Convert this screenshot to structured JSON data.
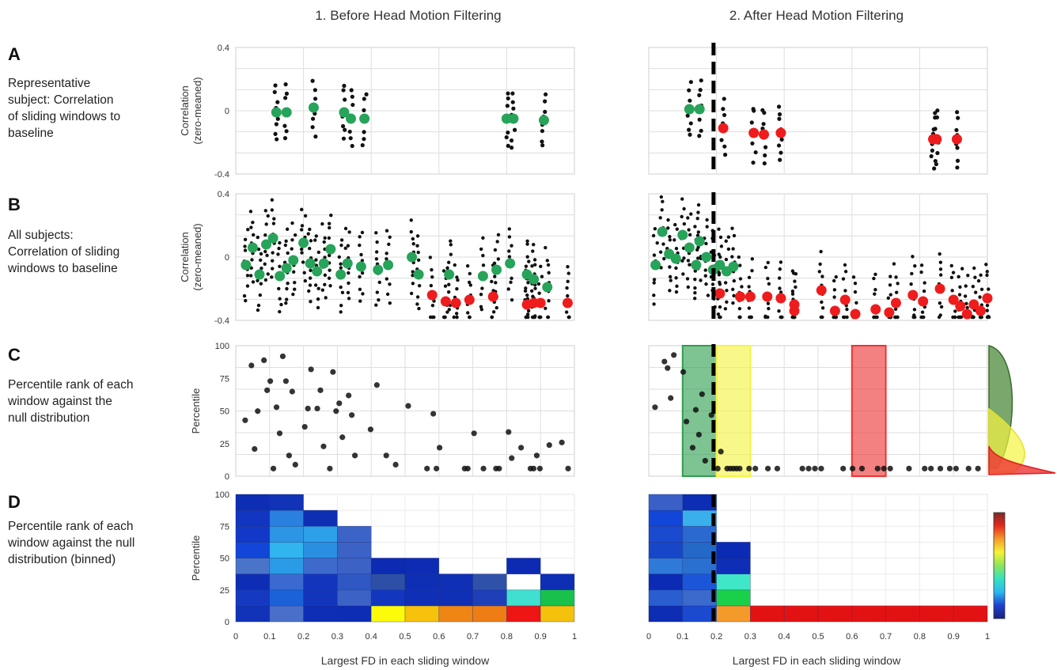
{
  "columns": {
    "before": "1. Before Head Motion Filtering",
    "after": "2. After Head Motion Filtering"
  },
  "rows": [
    {
      "letter": "A",
      "desc": [
        "Representative",
        "subject: Correlation",
        "of sliding windows to",
        "baseline"
      ]
    },
    {
      "letter": "B",
      "desc": [
        "All subjects:",
        "Correlation of sliding",
        "windows to baseline"
      ]
    },
    {
      "letter": "C",
      "desc": [
        "Percentile rank of each",
        "window against the",
        "null distribution"
      ]
    },
    {
      "letter": "D",
      "desc": [
        "Percentile rank of each",
        "window against the null",
        "distribution (binned)"
      ]
    }
  ],
  "xlabel": "Largest FD in each sliding window",
  "colors": {
    "kept_point": "#27a35a",
    "removed_point": "#ee1c1c",
    "raw_point": "#111111",
    "shade_green": "#2e9e4f",
    "shade_yellow": "#f4f442",
    "shade_red": "#ee3333"
  },
  "chart_data": [
    {
      "id": "A1",
      "type": "scatter",
      "panel": "A",
      "column": "before",
      "ylabel": "Correlation\n(zero-meaned)",
      "yticks": [
        "0.4",
        "0",
        "-0.4"
      ],
      "ylim": [
        -0.4,
        0.4
      ],
      "window_means": [
        [
          0.12,
          -0.01
        ],
        [
          0.15,
          -0.01
        ],
        [
          0.23,
          0.02
        ],
        [
          0.32,
          -0.01
        ],
        [
          0.34,
          -0.05
        ],
        [
          0.38,
          -0.05
        ],
        [
          0.8,
          -0.05
        ],
        [
          0.82,
          -0.05
        ],
        [
          0.91,
          -0.06
        ]
      ],
      "fd_threshold": null
    },
    {
      "id": "A2",
      "type": "scatter",
      "panel": "A",
      "column": "after",
      "yticks": [],
      "ylim": [
        -0.4,
        0.4
      ],
      "window_means": [
        [
          0.12,
          0.01
        ],
        [
          0.15,
          0.01
        ],
        [
          0.22,
          -0.11
        ],
        [
          0.31,
          -0.14
        ],
        [
          0.34,
          -0.15
        ],
        [
          0.39,
          -0.14
        ],
        [
          0.84,
          -0.18
        ],
        [
          0.85,
          -0.18
        ],
        [
          0.91,
          -0.18
        ]
      ],
      "fd_threshold": 0.21
    },
    {
      "id": "B1",
      "type": "scatter",
      "panel": "B",
      "column": "before",
      "ylabel": "Correlation\n(zero-meaned)",
      "yticks": [
        "0.4",
        "0",
        "-0.4"
      ],
      "ylim": [
        -0.4,
        0.4
      ],
      "kept_means": [
        [
          0.03,
          -0.05
        ],
        [
          0.05,
          0.06
        ],
        [
          0.07,
          -0.11
        ],
        [
          0.09,
          0.08
        ],
        [
          0.11,
          0.12
        ],
        [
          0.13,
          -0.12
        ],
        [
          0.15,
          -0.07
        ],
        [
          0.17,
          -0.02
        ],
        [
          0.2,
          0.09
        ],
        [
          0.22,
          -0.04
        ],
        [
          0.24,
          -0.09
        ],
        [
          0.26,
          -0.04
        ],
        [
          0.28,
          0.05
        ],
        [
          0.31,
          -0.11
        ],
        [
          0.33,
          -0.04
        ],
        [
          0.37,
          -0.06
        ],
        [
          0.42,
          -0.08
        ],
        [
          0.45,
          -0.05
        ],
        [
          0.52,
          0.0
        ],
        [
          0.54,
          -0.11
        ],
        [
          0.63,
          -0.11
        ],
        [
          0.73,
          -0.12
        ],
        [
          0.77,
          -0.08
        ],
        [
          0.81,
          -0.04
        ],
        [
          0.86,
          -0.11
        ],
        [
          0.88,
          -0.14
        ],
        [
          0.92,
          -0.19
        ]
      ],
      "removed_means": [
        [
          0.58,
          -0.24
        ],
        [
          0.62,
          -0.28
        ],
        [
          0.65,
          -0.29
        ],
        [
          0.69,
          -0.27
        ],
        [
          0.76,
          -0.25
        ],
        [
          0.86,
          -0.3
        ],
        [
          0.88,
          -0.29
        ],
        [
          0.9,
          -0.29
        ],
        [
          0.98,
          -0.29
        ]
      ],
      "fd_threshold": null
    },
    {
      "id": "B2",
      "type": "scatter",
      "panel": "B",
      "column": "after",
      "yticks": [],
      "ylim": [
        -0.4,
        0.4
      ],
      "kept_means": [
        [
          0.02,
          -0.05
        ],
        [
          0.04,
          0.16
        ],
        [
          0.06,
          0.02
        ],
        [
          0.08,
          -0.01
        ],
        [
          0.1,
          0.14
        ],
        [
          0.12,
          0.06
        ],
        [
          0.14,
          -0.05
        ],
        [
          0.15,
          0.1
        ],
        [
          0.17,
          0.0
        ],
        [
          0.19,
          -0.08
        ],
        [
          0.21,
          -0.05
        ],
        [
          0.23,
          -0.09
        ],
        [
          0.25,
          -0.06
        ]
      ],
      "removed_means": [
        [
          0.21,
          -0.23
        ],
        [
          0.27,
          -0.25
        ],
        [
          0.3,
          -0.25
        ],
        [
          0.35,
          -0.25
        ],
        [
          0.39,
          -0.26
        ],
        [
          0.43,
          -0.3
        ],
        [
          0.43,
          -0.34
        ],
        [
          0.51,
          -0.21
        ],
        [
          0.55,
          -0.34
        ],
        [
          0.58,
          -0.27
        ],
        [
          0.61,
          -0.36
        ],
        [
          0.67,
          -0.33
        ],
        [
          0.71,
          -0.35
        ],
        [
          0.73,
          -0.29
        ],
        [
          0.78,
          -0.24
        ],
        [
          0.81,
          -0.28
        ],
        [
          0.86,
          -0.2
        ],
        [
          0.9,
          -0.27
        ],
        [
          0.92,
          -0.31
        ],
        [
          0.94,
          -0.36
        ],
        [
          0.96,
          -0.3
        ],
        [
          0.98,
          -0.34
        ],
        [
          1.0,
          -0.26
        ]
      ],
      "fd_threshold": 0.21
    },
    {
      "id": "C1",
      "type": "scatter",
      "panel": "C",
      "column": "before",
      "ylabel": "Percentile",
      "yticks": [
        "100",
        "75",
        "50",
        "25",
        "0"
      ],
      "ylim": [
        0,
        100
      ],
      "points": [
        [
          0.03,
          38
        ],
        [
          0.05,
          80
        ],
        [
          0.06,
          16
        ],
        [
          0.07,
          45
        ],
        [
          0.09,
          84
        ],
        [
          0.1,
          61
        ],
        [
          0.11,
          68
        ],
        [
          0.12,
          1
        ],
        [
          0.13,
          48
        ],
        [
          0.14,
          28
        ],
        [
          0.15,
          87
        ],
        [
          0.16,
          68
        ],
        [
          0.17,
          11
        ],
        [
          0.18,
          60
        ],
        [
          0.19,
          4
        ],
        [
          0.22,
          33
        ],
        [
          0.23,
          47
        ],
        [
          0.24,
          77
        ],
        [
          0.26,
          47
        ],
        [
          0.27,
          61
        ],
        [
          0.28,
          18
        ],
        [
          0.3,
          1
        ],
        [
          0.31,
          75
        ],
        [
          0.32,
          45
        ],
        [
          0.33,
          51
        ],
        [
          0.34,
          25
        ],
        [
          0.36,
          57
        ],
        [
          0.37,
          42
        ],
        [
          0.38,
          11
        ],
        [
          0.43,
          31
        ],
        [
          0.45,
          65
        ],
        [
          0.48,
          11
        ],
        [
          0.51,
          4
        ],
        [
          0.55,
          49
        ],
        [
          0.61,
          1
        ],
        [
          0.63,
          43
        ],
        [
          0.64,
          1
        ],
        [
          0.65,
          17
        ],
        [
          0.73,
          1
        ],
        [
          0.74,
          1
        ],
        [
          0.76,
          28
        ],
        [
          0.79,
          1
        ],
        [
          0.83,
          1
        ],
        [
          0.84,
          1
        ],
        [
          0.87,
          29
        ],
        [
          0.88,
          9
        ],
        [
          0.91,
          17
        ],
        [
          0.94,
          1
        ],
        [
          0.95,
          1
        ],
        [
          0.96,
          11
        ],
        [
          0.97,
          1
        ],
        [
          1.0,
          19
        ],
        [
          1.04,
          21
        ],
        [
          1.06,
          1
        ]
      ],
      "fd_threshold": null
    },
    {
      "id": "C2",
      "type": "scatter",
      "panel": "C",
      "column": "after",
      "yticks": [],
      "ylim": [
        0,
        100
      ],
      "points": [
        [
          0.02,
          48
        ],
        [
          0.05,
          83
        ],
        [
          0.06,
          78
        ],
        [
          0.07,
          55
        ],
        [
          0.08,
          88
        ],
        [
          0.11,
          75
        ],
        [
          0.12,
          37
        ],
        [
          0.14,
          17
        ],
        [
          0.15,
          46
        ],
        [
          0.16,
          27
        ],
        [
          0.17,
          58
        ],
        [
          0.18,
          7
        ],
        [
          0.2,
          42
        ],
        [
          0.22,
          1
        ],
        [
          0.23,
          14
        ],
        [
          0.25,
          1
        ],
        [
          0.26,
          1
        ],
        [
          0.27,
          1
        ],
        [
          0.28,
          1
        ],
        [
          0.29,
          1
        ],
        [
          0.32,
          1
        ],
        [
          0.34,
          1
        ],
        [
          0.38,
          1
        ],
        [
          0.41,
          1
        ],
        [
          0.49,
          1
        ],
        [
          0.51,
          1
        ],
        [
          0.53,
          1
        ],
        [
          0.55,
          1
        ],
        [
          0.62,
          1
        ],
        [
          0.65,
          1
        ],
        [
          0.68,
          1
        ],
        [
          0.73,
          1
        ],
        [
          0.75,
          1
        ],
        [
          0.77,
          1
        ],
        [
          0.83,
          1
        ],
        [
          0.88,
          1
        ],
        [
          0.9,
          1
        ],
        [
          0.93,
          1
        ],
        [
          0.96,
          1
        ],
        [
          0.98,
          1
        ],
        [
          1.02,
          1
        ],
        [
          1.05,
          1
        ]
      ],
      "highlight_bins": [
        {
          "from": 0.1,
          "to": 0.2,
          "color": "#2e9e4f"
        },
        {
          "from": 0.2,
          "to": 0.3,
          "color": "#f4f442"
        },
        {
          "from": 0.6,
          "to": 0.7,
          "color": "#ee3333"
        }
      ],
      "fd_threshold": 0.21
    },
    {
      "id": "D1",
      "type": "heatmap",
      "panel": "D",
      "column": "before",
      "ylabel": "Percentile",
      "yticks": [
        "100",
        "75",
        "50",
        "25",
        "0"
      ],
      "xticks": [
        "0",
        "0.1",
        "0.2",
        "0.3",
        "0.4",
        "0.5",
        "0.6",
        "0.7",
        "0.8",
        "0.9",
        "1"
      ],
      "bins_x": [
        0,
        0.1,
        0.2,
        0.3,
        0.4,
        0.5,
        0.6,
        0.7,
        0.8,
        0.9,
        1.0
      ],
      "bins_y": [
        0,
        12.5,
        25,
        37.5,
        50,
        62.5,
        75,
        87.5,
        100
      ],
      "cells": [
        [
          "#1033b8",
          "#4a6fca",
          "#0e2eb5",
          "#0d2db4",
          "#fbfb0a",
          "#f7c20b",
          "#ef8515",
          "#ee7d16",
          "#ee1515",
          "#f4c10d"
        ],
        [
          "#1539c0",
          "#1b62d8",
          "#1235bc",
          "#3d62c6",
          "#1237be",
          "#0f30b6",
          "#0f2fb5",
          "#1e3fb8",
          "#40dfcf",
          "#18c24a"
        ],
        [
          "#0d2db4",
          "#3a6ad0",
          "#1335bd",
          "#2f58c4",
          "#2d4fa6",
          "#0e2eb4",
          "#0f2fb5",
          "#2f52a8",
          "#ffffff",
          "#0e2eb4"
        ],
        [
          "#4a74c8",
          "#2a9be6",
          "#3d6acc",
          "#3d62c6",
          "#0c2bb2",
          "#0d2cb3",
          null,
          null,
          "#0c2bb2",
          null
        ],
        [
          "#1246d8",
          "#31b5ee",
          "#2a8fe0",
          "#3d62c6",
          null,
          null,
          null,
          null,
          null,
          null
        ],
        [
          "#1138c6",
          "#2c95e4",
          "#2ca0e8",
          "#3c63c8",
          null,
          null,
          null,
          null,
          null,
          null
        ],
        [
          "#1235c2",
          "#2a80de",
          "#0e2eb4",
          null,
          null,
          null,
          null,
          null,
          null,
          null
        ],
        [
          "#0d2db4",
          "#1033b8",
          null,
          null,
          null,
          null,
          null,
          null,
          null,
          null
        ]
      ],
      "fd_threshold": null
    },
    {
      "id": "D2",
      "type": "heatmap",
      "panel": "D",
      "column": "after",
      "yticks": [],
      "xticks": [
        "0",
        "0.1",
        "0.2",
        "0.3",
        "0.4",
        "0.5",
        "0.6",
        "0.7",
        "0.8",
        "0.9",
        "1"
      ],
      "bins_x": [
        0,
        0.1,
        0.2,
        0.3,
        0.4,
        0.5,
        0.6,
        0.7,
        0.8,
        0.9,
        1.0
      ],
      "bins_y": [
        0,
        12.5,
        25,
        37.5,
        50,
        62.5,
        75,
        87.5,
        100
      ],
      "cells": [
        [
          "#0d2db4",
          "#1b4ad0",
          "#f49a2a",
          "#e31212",
          "#e31212",
          "#e31212",
          "#e31212",
          "#e31212",
          "#e31212",
          "#e31212"
        ],
        [
          "#2a5ed0",
          "#3a6acc",
          "#1ad04a",
          null,
          null,
          null,
          null,
          null,
          null,
          null
        ],
        [
          "#0c2bb4",
          "#1c56d8",
          "#40e6c8",
          null,
          null,
          null,
          null,
          null,
          null,
          null
        ],
        [
          "#2f7ad8",
          "#2a70d0",
          "#0e2eb8",
          null,
          null,
          null,
          null,
          null,
          null,
          null
        ],
        [
          "#1747c8",
          "#2468c8",
          "#0c2bb4",
          null,
          null,
          null,
          null,
          null,
          null,
          null
        ],
        [
          "#1a4ad0",
          "#2a6ad0",
          null,
          null,
          null,
          null,
          null,
          null,
          null,
          null
        ],
        [
          "#1246d8",
          "#3ab0ea",
          null,
          null,
          null,
          null,
          null,
          null,
          null,
          null
        ],
        [
          "#3a60c8",
          "#0d2db4",
          null,
          null,
          null,
          null,
          null,
          null,
          null,
          null
        ]
      ],
      "colorbar": [
        "#1a237e",
        "#1e3fd0",
        "#2ab8f0",
        "#37e2c2",
        "#8ce65a",
        "#f6f236",
        "#f59c2a",
        "#e52a1a",
        "#7a2a2a"
      ],
      "fd_threshold": 0.21
    }
  ]
}
